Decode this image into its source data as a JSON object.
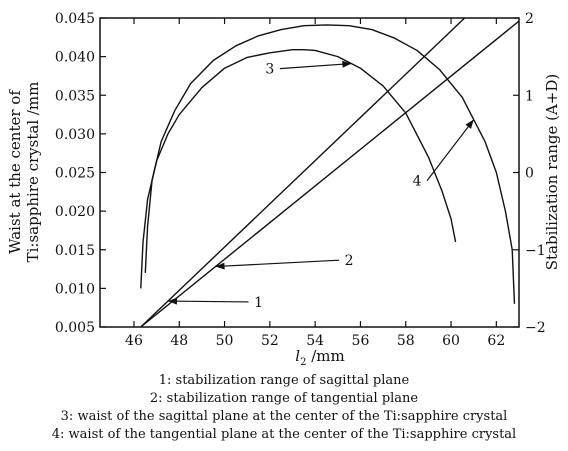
{
  "chart_data": {
    "type": "line",
    "title": "",
    "xlabel_var": "l",
    "xlabel_sub": "2",
    "xlabel_unit": " /mm",
    "ylabel_left_line1": "Waist at the center of",
    "ylabel_left_line2": "Ti:sapphire crystal /mm",
    "ylabel_right": "Stabilization range (A+D)",
    "xlim": [
      44.5,
      63.0
    ],
    "ylim_left": [
      0.005,
      0.045
    ],
    "ylim_right": [
      -2,
      2
    ],
    "x_ticks": [
      "46",
      "48",
      "50",
      "52",
      "54",
      "56",
      "58",
      "60",
      "62"
    ],
    "y_left_ticks": [
      "0.005",
      "0.010",
      "0.015",
      "0.020",
      "0.025",
      "0.030",
      "0.035",
      "0.040",
      "0.045"
    ],
    "y_right_ticks": [
      "-2",
      "-1",
      "0",
      "1",
      "2"
    ],
    "series": [
      {
        "name": "1",
        "axis": "right",
        "x": [
          46.3,
          60.6
        ],
        "y": [
          -2.0,
          2.0
        ]
      },
      {
        "name": "2",
        "axis": "right",
        "x": [
          46.3,
          63.0
        ],
        "y": [
          -2.0,
          1.96
        ]
      },
      {
        "name": "3",
        "axis": "left",
        "x": [
          46.3,
          46.4,
          46.6,
          47.0,
          47.5,
          48.0,
          49.0,
          50.0,
          51.0,
          52.0,
          53.0,
          53.5,
          54.0,
          55.0,
          56.0,
          57.0,
          58.0,
          59.0,
          59.6,
          60.0,
          60.2
        ],
        "y": [
          0.01,
          0.016,
          0.0215,
          0.0265,
          0.03,
          0.0325,
          0.036,
          0.0385,
          0.0399,
          0.0405,
          0.0409,
          0.0409,
          0.0408,
          0.04,
          0.0385,
          0.0362,
          0.0327,
          0.027,
          0.0226,
          0.019,
          0.016
        ]
      },
      {
        "name": "4",
        "axis": "left",
        "x": [
          46.5,
          46.6,
          46.8,
          47.2,
          47.8,
          48.5,
          49.5,
          50.5,
          51.5,
          52.5,
          53.5,
          54.5,
          55.5,
          56.5,
          57.5,
          58.5,
          59.5,
          60.5,
          61.5,
          62.0,
          62.4,
          62.7,
          62.8
        ],
        "y": [
          0.012,
          0.018,
          0.024,
          0.029,
          0.033,
          0.0365,
          0.0395,
          0.0414,
          0.0427,
          0.0435,
          0.044,
          0.0441,
          0.044,
          0.0435,
          0.0424,
          0.0408,
          0.0383,
          0.0347,
          0.029,
          0.025,
          0.02,
          0.015,
          0.008
        ]
      }
    ],
    "annotations": [
      {
        "label": "1",
        "series": "1",
        "text_x": 51.5,
        "text_y_left": 0.0076,
        "target_x": 47.5
      },
      {
        "label": "2",
        "series": "2",
        "text_x": 55.5,
        "text_y_left": 0.013,
        "target_x": 49.6
      },
      {
        "label": "3",
        "series": "3",
        "text_x": 52.0,
        "text_y_left": 0.0378,
        "target_x": 55.6
      },
      {
        "label": "4",
        "series": "4",
        "text_x": 58.5,
        "text_y_left": 0.0233,
        "target_x": 61.0
      }
    ],
    "grid": false,
    "legend_lines": [
      "1: stabilization range of sagittal plane",
      "2: stabilization range of tangential plane",
      "3: waist of the sagittal plane at the center of the Ti:sapphire crystal",
      "4: waist of the tangential plane at the center of the Ti:sapphire crystal"
    ]
  }
}
